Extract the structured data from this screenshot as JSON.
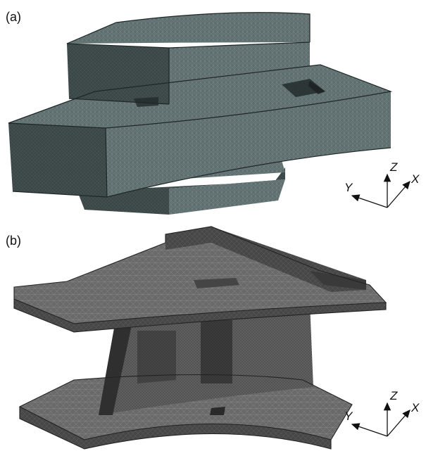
{
  "panels": [
    {
      "label": "(a)",
      "axes": {
        "z": "Z",
        "y": "Y",
        "x": "X"
      }
    },
    {
      "label": "(b)",
      "axes": {
        "z": "Z",
        "y": "Y",
        "x": "X"
      }
    }
  ],
  "colors": {
    "mesh_top_face": "#5b6a6a",
    "mesh_side_face": "#3a4545",
    "mesh_dark": "#2a3232",
    "mesh_b_top": "#6b6b6b",
    "mesh_b_side": "#4a4a4a",
    "axis": "#111111"
  }
}
